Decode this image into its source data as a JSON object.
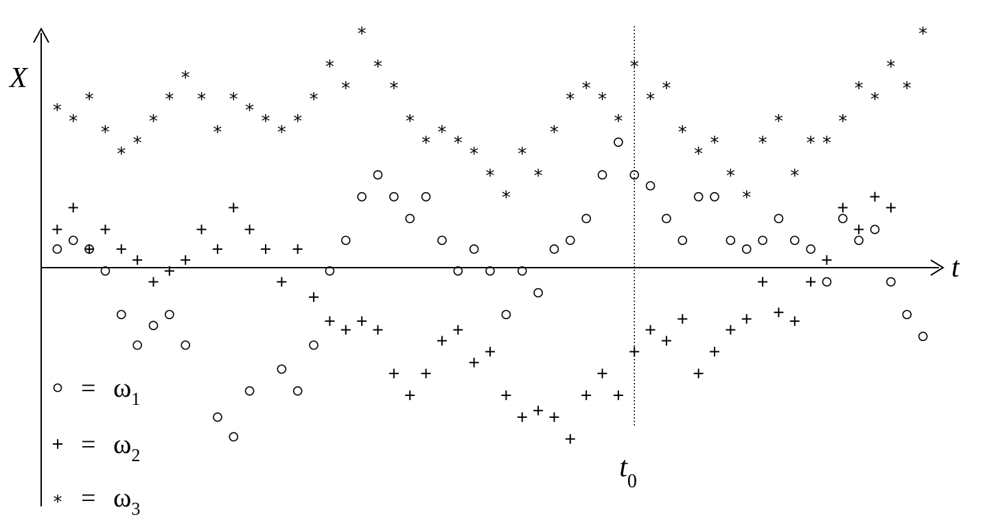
{
  "chart_data": {
    "type": "scatter",
    "title": "",
    "ylabel": "X",
    "xlabel": "t",
    "vline_label": "t",
    "vline_label_sub": "0",
    "vline_x": 37,
    "xlim": [
      0,
      56
    ],
    "ylim": [
      -10.6,
      13.3
    ],
    "grid": false,
    "legend_position": "bottom-left",
    "legend": [
      {
        "symbol": "○",
        "equals": "=",
        "text": "ω",
        "sub": "1"
      },
      {
        "symbol": "+",
        "equals": "=",
        "text": "ω",
        "sub": "2"
      },
      {
        "symbol": "*",
        "equals": "=",
        "text": "ω",
        "sub": "3"
      }
    ],
    "series": [
      {
        "marker": "circle",
        "points": [
          [
            1,
            2.2
          ],
          [
            2,
            2.6
          ],
          [
            3,
            2.2
          ],
          [
            4,
            1.2
          ],
          [
            5,
            -0.8
          ],
          [
            6,
            -2.2
          ],
          [
            7,
            -1.3
          ],
          [
            8,
            -0.8
          ],
          [
            9,
            -2.2
          ],
          [
            11,
            -5.5
          ],
          [
            12,
            -6.4
          ],
          [
            13,
            -4.3
          ],
          [
            15,
            -3.3
          ],
          [
            16,
            -4.3
          ],
          [
            17,
            -2.2
          ],
          [
            18,
            1.2
          ],
          [
            19,
            2.6
          ],
          [
            20,
            4.6
          ],
          [
            21,
            5.6
          ],
          [
            22,
            4.6
          ],
          [
            23,
            3.6
          ],
          [
            24,
            4.6
          ],
          [
            25,
            2.6
          ],
          [
            26,
            1.2
          ],
          [
            27,
            2.2
          ],
          [
            28,
            1.2
          ],
          [
            30,
            1.2
          ],
          [
            29,
            -0.8
          ],
          [
            31,
            0.2
          ],
          [
            32,
            2.2
          ],
          [
            33,
            2.6
          ],
          [
            34,
            3.6
          ],
          [
            35,
            5.6
          ],
          [
            36,
            7.1
          ],
          [
            37,
            5.6
          ],
          [
            38,
            5.1
          ],
          [
            39,
            3.6
          ],
          [
            40,
            2.6
          ],
          [
            41,
            4.6
          ],
          [
            42,
            4.6
          ],
          [
            43,
            2.6
          ],
          [
            44,
            2.2
          ],
          [
            45,
            2.6
          ],
          [
            46,
            3.6
          ],
          [
            47,
            2.6
          ],
          [
            48,
            2.2
          ],
          [
            49,
            0.7
          ],
          [
            50,
            3.6
          ],
          [
            51,
            2.6
          ],
          [
            52,
            3.1
          ],
          [
            53,
            0.7
          ],
          [
            54,
            -0.8
          ],
          [
            55,
            -1.8
          ]
        ]
      },
      {
        "marker": "plus",
        "points": [
          [
            1,
            3.1
          ],
          [
            2,
            4.1
          ],
          [
            3,
            2.2
          ],
          [
            4,
            3.1
          ],
          [
            5,
            2.2
          ],
          [
            6,
            1.7
          ],
          [
            7,
            0.7
          ],
          [
            8,
            1.2
          ],
          [
            9,
            1.7
          ],
          [
            10,
            3.1
          ],
          [
            11,
            2.2
          ],
          [
            12,
            4.1
          ],
          [
            13,
            3.1
          ],
          [
            14,
            2.2
          ],
          [
            15,
            0.7
          ],
          [
            16,
            2.2
          ],
          [
            17,
            0.0
          ],
          [
            18,
            -1.1
          ],
          [
            19,
            -1.5
          ],
          [
            20,
            -1.1
          ],
          [
            21,
            -1.5
          ],
          [
            22,
            -3.5
          ],
          [
            23,
            -4.5
          ],
          [
            24,
            -3.5
          ],
          [
            25,
            -2.0
          ],
          [
            26,
            -1.5
          ],
          [
            27,
            -3.0
          ],
          [
            28,
            -2.5
          ],
          [
            29,
            -4.5
          ],
          [
            30,
            -5.5
          ],
          [
            31,
            -5.2
          ],
          [
            32,
            -5.5
          ],
          [
            33,
            -6.5
          ],
          [
            34,
            -4.5
          ],
          [
            35,
            -3.5
          ],
          [
            36,
            -4.5
          ],
          [
            37,
            -2.5
          ],
          [
            38,
            -1.5
          ],
          [
            39,
            -2.0
          ],
          [
            40,
            -1.0
          ],
          [
            41,
            -3.5
          ],
          [
            42,
            -2.5
          ],
          [
            43,
            -1.5
          ],
          [
            44,
            -1.0
          ],
          [
            45,
            0.7
          ],
          [
            46,
            -0.7
          ],
          [
            47,
            -1.1
          ],
          [
            48,
            0.7
          ],
          [
            49,
            1.7
          ],
          [
            50,
            4.1
          ],
          [
            51,
            3.1
          ],
          [
            52,
            4.6
          ],
          [
            53,
            4.1
          ]
        ]
      },
      {
        "marker": "star",
        "points": [
          [
            1,
            8.6
          ],
          [
            2,
            8.1
          ],
          [
            3,
            9.1
          ],
          [
            4,
            7.6
          ],
          [
            5,
            6.6
          ],
          [
            6,
            7.1
          ],
          [
            7,
            8.1
          ],
          [
            8,
            9.1
          ],
          [
            9,
            10.1
          ],
          [
            10,
            9.1
          ],
          [
            11,
            7.6
          ],
          [
            12,
            9.1
          ],
          [
            13,
            8.6
          ],
          [
            14,
            8.1
          ],
          [
            15,
            7.6
          ],
          [
            16,
            8.1
          ],
          [
            17,
            9.1
          ],
          [
            18,
            10.6
          ],
          [
            19,
            9.6
          ],
          [
            20,
            12.1
          ],
          [
            21,
            10.6
          ],
          [
            22,
            9.6
          ],
          [
            23,
            8.1
          ],
          [
            24,
            7.1
          ],
          [
            25,
            7.6
          ],
          [
            26,
            7.1
          ],
          [
            27,
            6.6
          ],
          [
            28,
            5.6
          ],
          [
            29,
            4.6
          ],
          [
            30,
            6.6
          ],
          [
            31,
            5.6
          ],
          [
            32,
            7.6
          ],
          [
            33,
            9.1
          ],
          [
            34,
            9.6
          ],
          [
            35,
            9.1
          ],
          [
            36,
            8.1
          ],
          [
            37,
            10.6
          ],
          [
            38,
            9.1
          ],
          [
            39,
            9.6
          ],
          [
            40,
            7.6
          ],
          [
            41,
            6.6
          ],
          [
            42,
            7.1
          ],
          [
            43,
            5.6
          ],
          [
            44,
            4.6
          ],
          [
            45,
            7.1
          ],
          [
            46,
            8.1
          ],
          [
            47,
            5.6
          ],
          [
            48,
            7.1
          ],
          [
            49,
            7.1
          ],
          [
            50,
            8.1
          ],
          [
            51,
            9.6
          ],
          [
            52,
            9.1
          ],
          [
            53,
            10.6
          ],
          [
            54,
            9.6
          ],
          [
            55,
            12.1
          ]
        ]
      }
    ]
  }
}
